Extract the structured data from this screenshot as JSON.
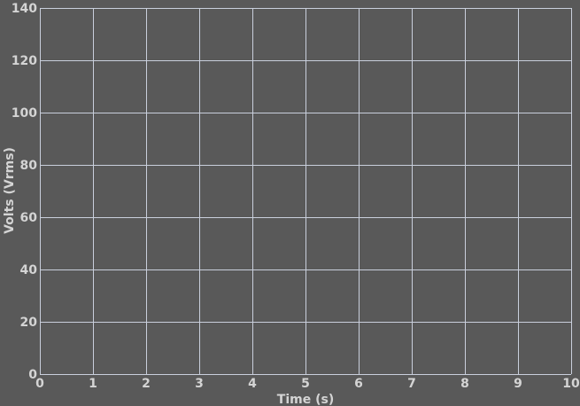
{
  "chart_data": {
    "type": "line",
    "title": "",
    "xlabel": "Time (s)",
    "ylabel": "Volts (Vrms)",
    "xlim": [
      0,
      10
    ],
    "ylim": [
      0,
      140
    ],
    "x_ticks": [
      0,
      1,
      2,
      3,
      4,
      5,
      6,
      7,
      8,
      9,
      10
    ],
    "y_ticks": [
      0,
      20,
      40,
      60,
      80,
      100,
      120,
      140
    ],
    "grid": true,
    "series": [],
    "colors": {
      "background": "#595959",
      "grid": "#c9cfdc",
      "text": "#d4d4d4"
    }
  }
}
